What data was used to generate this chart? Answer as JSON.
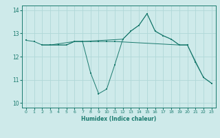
{
  "xlabel": "Humidex (Indice chaleur)",
  "xlim": [
    -0.5,
    23.5
  ],
  "ylim": [
    9.8,
    14.2
  ],
  "yticks": [
    10,
    11,
    12,
    13,
    14
  ],
  "xticks": [
    0,
    1,
    2,
    3,
    4,
    5,
    6,
    7,
    8,
    9,
    10,
    11,
    12,
    13,
    14,
    15,
    16,
    17,
    18,
    19,
    20,
    21,
    22,
    23
  ],
  "line_color": "#1a7a6e",
  "bg_color": "#ceeaea",
  "grid_color": "#b0d8d8",
  "lines": [
    {
      "x": [
        0,
        1,
        2,
        3,
        4,
        5,
        6,
        7,
        12,
        13,
        14,
        15,
        16,
        17,
        18,
        19,
        20,
        21,
        22,
        23
      ],
      "y": [
        12.7,
        12.65,
        12.5,
        12.5,
        12.5,
        12.5,
        12.65,
        12.65,
        12.75,
        13.1,
        13.35,
        13.85,
        13.1,
        12.9,
        12.75,
        12.5,
        12.5,
        11.75,
        11.1,
        10.85
      ]
    },
    {
      "x": [
        2,
        3,
        4,
        5,
        6,
        7,
        8,
        9,
        10,
        11,
        19,
        20
      ],
      "y": [
        12.5,
        12.5,
        12.5,
        12.5,
        12.65,
        12.65,
        12.65,
        12.65,
        12.65,
        12.65,
        12.5,
        12.5
      ]
    },
    {
      "x": [
        2,
        3,
        6,
        7,
        8,
        9,
        10,
        11,
        12,
        13,
        14,
        15,
        16,
        17,
        18,
        19,
        20,
        22,
        23
      ],
      "y": [
        12.5,
        12.5,
        12.65,
        12.65,
        11.3,
        10.4,
        10.6,
        11.65,
        12.75,
        13.1,
        13.35,
        13.85,
        13.1,
        12.9,
        12.75,
        12.5,
        12.5,
        11.1,
        10.85
      ]
    }
  ]
}
